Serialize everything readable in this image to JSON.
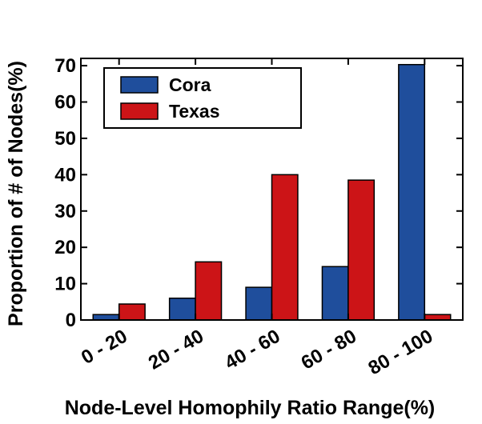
{
  "chart_data": {
    "type": "bar",
    "title": "",
    "xlabel": "Node-Level Homophily Ratio Range(%)",
    "ylabel": "Proportion of # of Nodes(%)",
    "categories": [
      "0 - 20",
      "20 - 40",
      "40 - 60",
      "60 - 80",
      "80 - 100"
    ],
    "ylim": [
      0,
      72
    ],
    "yticks": [
      0,
      10,
      20,
      30,
      40,
      50,
      60,
      70
    ],
    "ytick_labels": [
      "0",
      "10",
      "20",
      "30",
      "40",
      "50",
      "60",
      "70"
    ],
    "grid": false,
    "legend_position": "top-left",
    "series": [
      {
        "name": "Cora",
        "color": "#1f4e9c",
        "values": [
          1.5,
          6.0,
          9.0,
          14.7,
          70.3
        ]
      },
      {
        "name": "Texas",
        "color": "#cc1417",
        "values": [
          4.4,
          16.0,
          40.0,
          38.5,
          1.5
        ]
      }
    ]
  }
}
